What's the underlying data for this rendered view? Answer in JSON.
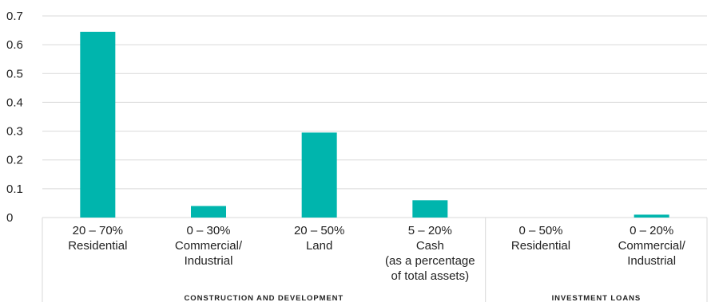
{
  "chart_data": {
    "type": "bar",
    "categories": [
      [
        "20 – 70%",
        "Residential"
      ],
      [
        "0 – 30%",
        "Commercial/",
        "Industrial"
      ],
      [
        "20 – 50%",
        "Land"
      ],
      [
        "5 – 20%",
        "Cash",
        "(as a percentage",
        "of total assets)"
      ],
      [
        "0 – 50%",
        "Residential"
      ],
      [
        "0 – 20%",
        "Commercial/",
        "Industrial"
      ]
    ],
    "values": [
      0.645,
      0.04,
      0.295,
      0.06,
      0.0,
      0.01
    ],
    "groups": [
      {
        "label": "CONSTRUCTION AND DEVELOPMENT",
        "categories": [
          0,
          1,
          2,
          3
        ]
      },
      {
        "label": "INVESTMENT LOANS",
        "categories": [
          4,
          5
        ]
      }
    ],
    "yticks": [
      "0",
      "0.1",
      "0.2",
      "0.3",
      "0.4",
      "0.5",
      "0.6",
      "0.7"
    ],
    "ylim": [
      0,
      0.7
    ],
    "title": "",
    "xlabel": "",
    "ylabel": "",
    "grid": true,
    "bar_color": "#00b5ad",
    "grid_color": "#d9d9d9"
  }
}
